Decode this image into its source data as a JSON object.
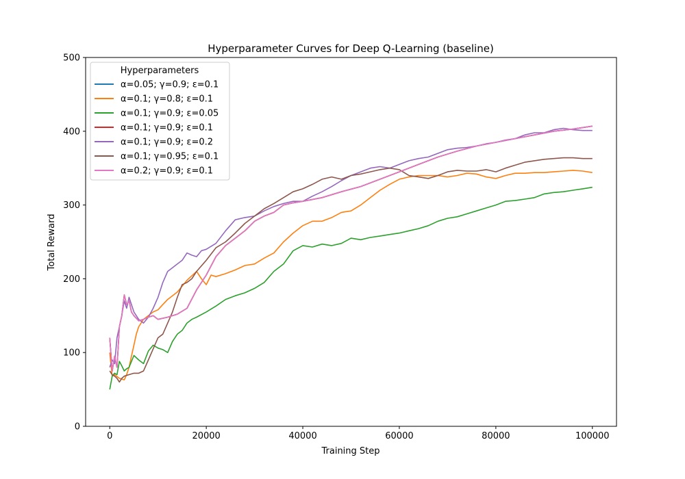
{
  "chart_data": {
    "type": "line",
    "title": "Hyperparameter Curves for Deep Q-Learning (baseline)",
    "xlabel": "Training Step",
    "ylabel": "Total Reward",
    "xlim": [
      -5000,
      105000
    ],
    "ylim": [
      0,
      500
    ],
    "xticks": [
      0,
      20000,
      40000,
      60000,
      80000,
      100000
    ],
    "xtick_labels": [
      "0",
      "20000",
      "40000",
      "60000",
      "80000",
      "100000"
    ],
    "yticks": [
      0,
      100,
      200,
      300,
      400,
      500
    ],
    "ytick_labels": [
      "0",
      "100",
      "200",
      "300",
      "400",
      "500"
    ],
    "grid": false,
    "legend": {
      "title": "Hyperparameters",
      "placement": "top-left"
    },
    "series": [
      {
        "name": "α=0.05; γ=0.9; ε=0.1",
        "color": "#1f77b4",
        "x": [
          0,
          500,
          1000,
          1500,
          2000,
          2500,
          3000,
          3500,
          4000,
          4500,
          5000,
          6000,
          7000,
          8000,
          9000,
          10000,
          12000,
          14000,
          16000,
          18000,
          20000,
          22000,
          24000,
          26000,
          28000,
          30000,
          32000,
          34000,
          36000,
          38000,
          40000,
          44000,
          48000,
          52000,
          56000,
          60000,
          64000,
          68000,
          72000,
          76000,
          80000,
          84000,
          88000,
          92000,
          96000,
          100000
        ],
        "y": [
          120,
          75,
          95,
          80,
          135,
          150,
          178,
          165,
          170,
          155,
          150,
          143,
          145,
          148,
          150,
          145,
          148,
          152,
          160,
          185,
          205,
          230,
          245,
          255,
          265,
          278,
          285,
          290,
          300,
          303,
          305,
          310,
          318,
          325,
          335,
          345,
          355,
          365,
          373,
          380,
          385,
          390,
          395,
          400,
          403,
          407
        ]
      },
      {
        "name": "α=0.1; γ=0.8; ε=0.1",
        "color": "#ff7f0e",
        "x": [
          0,
          500,
          1000,
          2000,
          3000,
          3500,
          4000,
          4500,
          5000,
          5500,
          6000,
          7000,
          8000,
          9000,
          10000,
          11000,
          12000,
          14000,
          16000,
          18000,
          19000,
          20000,
          21000,
          22000,
          24000,
          26000,
          28000,
          30000,
          32000,
          34000,
          36000,
          38000,
          40000,
          42000,
          44000,
          46000,
          48000,
          50000,
          52000,
          54000,
          56000,
          58000,
          60000,
          62000,
          64000,
          66000,
          68000,
          70000,
          72000,
          74000,
          76000,
          78000,
          80000,
          82000,
          84000,
          86000,
          88000,
          90000,
          92000,
          94000,
          96000,
          98000,
          100000
        ],
        "y": [
          100,
          68,
          70,
          65,
          63,
          70,
          80,
          95,
          110,
          125,
          135,
          145,
          150,
          155,
          158,
          165,
          172,
          182,
          198,
          210,
          200,
          192,
          205,
          203,
          207,
          212,
          218,
          220,
          228,
          235,
          250,
          262,
          272,
          278,
          278,
          283,
          290,
          292,
          300,
          310,
          320,
          328,
          335,
          338,
          340,
          340,
          340,
          338,
          340,
          343,
          342,
          338,
          336,
          340,
          343,
          343,
          344,
          344,
          345,
          346,
          347,
          346,
          344
        ]
      },
      {
        "name": "α=0.1; γ=0.9; ε=0.05",
        "color": "#2ca02c",
        "x": [
          0,
          500,
          1000,
          1500,
          2000,
          2500,
          3000,
          3500,
          4000,
          5000,
          6000,
          7000,
          8000,
          9000,
          10000,
          11000,
          12000,
          13000,
          14000,
          15000,
          16000,
          17000,
          18000,
          20000,
          22000,
          24000,
          26000,
          28000,
          30000,
          32000,
          34000,
          36000,
          38000,
          40000,
          42000,
          44000,
          46000,
          48000,
          50000,
          52000,
          54000,
          56000,
          58000,
          60000,
          62000,
          64000,
          66000,
          68000,
          70000,
          72000,
          74000,
          76000,
          78000,
          80000,
          82000,
          84000,
          86000,
          88000,
          90000,
          92000,
          94000,
          96000,
          98000,
          100000
        ],
        "y": [
          50,
          68,
          72,
          70,
          88,
          82,
          75,
          78,
          80,
          96,
          90,
          85,
          102,
          110,
          106,
          104,
          100,
          115,
          125,
          130,
          140,
          145,
          148,
          155,
          163,
          172,
          177,
          181,
          187,
          195,
          210,
          220,
          238,
          245,
          243,
          247,
          245,
          248,
          255,
          253,
          256,
          258,
          260,
          262,
          265,
          268,
          272,
          278,
          282,
          284,
          288,
          292,
          296,
          300,
          305,
          306,
          308,
          310,
          315,
          317,
          318,
          320,
          322,
          324
        ]
      },
      {
        "name": "α=0.1; γ=0.9; ε=0.1",
        "color": "#d62728",
        "x": [
          0,
          500,
          1000,
          1500,
          2000,
          2500,
          3000,
          3500,
          4000,
          4500,
          5000,
          6000,
          7000,
          8000,
          9000,
          10000,
          12000,
          14000,
          16000,
          18000,
          20000,
          22000,
          24000,
          26000,
          28000,
          30000,
          32000,
          34000,
          36000,
          38000,
          40000,
          44000,
          48000,
          52000,
          56000,
          60000,
          64000,
          68000,
          72000,
          76000,
          80000,
          84000,
          88000,
          92000,
          96000,
          100000
        ],
        "y": [
          120,
          75,
          95,
          80,
          135,
          150,
          178,
          165,
          170,
          155,
          150,
          143,
          145,
          148,
          150,
          145,
          148,
          152,
          160,
          185,
          205,
          230,
          245,
          255,
          265,
          278,
          285,
          290,
          300,
          303,
          305,
          310,
          318,
          325,
          335,
          345,
          355,
          365,
          373,
          380,
          385,
          390,
          395,
          400,
          403,
          407
        ]
      },
      {
        "name": "α=0.1; γ=0.9; ε=0.2",
        "color": "#9467bd",
        "x": [
          0,
          500,
          1000,
          1500,
          2000,
          2500,
          3000,
          3500,
          4000,
          4500,
          5000,
          6000,
          7000,
          8000,
          9000,
          10000,
          11000,
          12000,
          13000,
          14000,
          15000,
          16000,
          17000,
          18000,
          19000,
          20000,
          22000,
          24000,
          26000,
          28000,
          30000,
          32000,
          34000,
          36000,
          38000,
          40000,
          42000,
          44000,
          46000,
          48000,
          50000,
          52000,
          54000,
          56000,
          58000,
          60000,
          62000,
          64000,
          66000,
          68000,
          70000,
          72000,
          74000,
          76000,
          78000,
          80000,
          82000,
          84000,
          86000,
          88000,
          90000,
          92000,
          94000,
          96000,
          98000,
          100000
        ],
        "y": [
          80,
          90,
          85,
          120,
          135,
          150,
          170,
          160,
          175,
          165,
          155,
          145,
          140,
          148,
          160,
          175,
          195,
          210,
          215,
          220,
          225,
          235,
          232,
          230,
          238,
          240,
          248,
          265,
          280,
          283,
          285,
          292,
          298,
          302,
          305,
          305,
          312,
          318,
          325,
          333,
          340,
          345,
          350,
          352,
          350,
          355,
          360,
          363,
          365,
          370,
          375,
          377,
          378,
          380,
          383,
          385,
          388,
          390,
          395,
          398,
          398,
          402,
          404,
          402,
          401,
          401
        ]
      },
      {
        "name": "α=0.1; γ=0.95; ε=0.1",
        "color": "#8c564b",
        "x": [
          0,
          500,
          1000,
          1500,
          2000,
          2500,
          3000,
          4000,
          5000,
          6000,
          7000,
          8000,
          9000,
          10000,
          11000,
          12000,
          13000,
          14000,
          15000,
          16000,
          17000,
          18000,
          20000,
          22000,
          24000,
          26000,
          28000,
          30000,
          32000,
          34000,
          36000,
          38000,
          40000,
          42000,
          44000,
          46000,
          48000,
          50000,
          52000,
          54000,
          56000,
          58000,
          60000,
          62000,
          64000,
          66000,
          68000,
          70000,
          72000,
          74000,
          76000,
          78000,
          80000,
          82000,
          84000,
          86000,
          88000,
          90000,
          92000,
          94000,
          96000,
          98000,
          100000
        ],
        "y": [
          75,
          70,
          68,
          65,
          60,
          65,
          68,
          70,
          72,
          72,
          75,
          90,
          105,
          120,
          125,
          140,
          155,
          175,
          192,
          195,
          200,
          210,
          225,
          242,
          250,
          262,
          275,
          285,
          295,
          302,
          310,
          318,
          322,
          328,
          335,
          338,
          335,
          340,
          342,
          345,
          348,
          350,
          348,
          340,
          338,
          336,
          340,
          345,
          347,
          346,
          346,
          348,
          345,
          350,
          354,
          358,
          360,
          362,
          363,
          364,
          364,
          363,
          363
        ]
      },
      {
        "name": "α=0.2; γ=0.9; ε=0.1",
        "color": "#e377c2",
        "x": [
          0,
          500,
          1000,
          1500,
          2000,
          2500,
          3000,
          3500,
          4000,
          4500,
          5000,
          6000,
          7000,
          8000,
          9000,
          10000,
          12000,
          14000,
          16000,
          18000,
          20000,
          22000,
          24000,
          26000,
          28000,
          30000,
          32000,
          34000,
          36000,
          38000,
          40000,
          44000,
          48000,
          52000,
          56000,
          60000,
          64000,
          68000,
          72000,
          76000,
          80000,
          84000,
          88000,
          92000,
          96000,
          100000
        ],
        "y": [
          120,
          75,
          95,
          80,
          135,
          150,
          178,
          165,
          170,
          155,
          150,
          143,
          145,
          148,
          150,
          145,
          148,
          152,
          160,
          185,
          205,
          230,
          245,
          255,
          265,
          278,
          285,
          290,
          300,
          303,
          305,
          310,
          318,
          325,
          335,
          345,
          355,
          365,
          373,
          380,
          385,
          390,
          395,
          400,
          403,
          407
        ]
      }
    ]
  }
}
